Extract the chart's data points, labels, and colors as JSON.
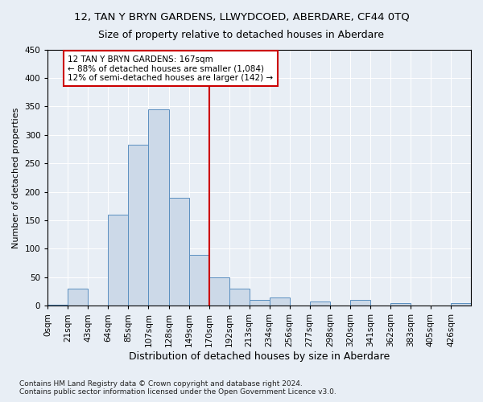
{
  "title": "12, TAN Y BRYN GARDENS, LLWYDCOED, ABERDARE, CF44 0TQ",
  "subtitle": "Size of property relative to detached houses in Aberdare",
  "xlabel": "Distribution of detached houses by size in Aberdare",
  "ylabel": "Number of detached properties",
  "footnote1": "Contains HM Land Registry data © Crown copyright and database right 2024.",
  "footnote2": "Contains public sector information licensed under the Open Government Licence v3.0.",
  "bin_labels": [
    "0sqm",
    "21sqm",
    "43sqm",
    "64sqm",
    "85sqm",
    "107sqm",
    "128sqm",
    "149sqm",
    "170sqm",
    "192sqm",
    "213sqm",
    "234sqm",
    "256sqm",
    "277sqm",
    "298sqm",
    "320sqm",
    "341sqm",
    "362sqm",
    "383sqm",
    "405sqm",
    "426sqm"
  ],
  "bar_heights": [
    2,
    30,
    0,
    160,
    283,
    345,
    190,
    90,
    50,
    30,
    10,
    15,
    0,
    8,
    0,
    10,
    0,
    5,
    0,
    0,
    5
  ],
  "bar_color": "#ccd9e8",
  "bar_edge_color": "#5a8fc0",
  "vline_x_index": 8,
  "vline_color": "#cc0000",
  "annotation_text": "12 TAN Y BRYN GARDENS: 167sqm\n← 88% of detached houses are smaller (1,084)\n12% of semi-detached houses are larger (142) →",
  "annotation_box_color": "#cc0000",
  "ylim": [
    0,
    450
  ],
  "yticks": [
    0,
    50,
    100,
    150,
    200,
    250,
    300,
    350,
    400,
    450
  ],
  "background_color": "#e8eef5",
  "plot_bg_color": "#e8eef5",
  "grid_color": "#ffffff",
  "title_fontsize": 9.5,
  "subtitle_fontsize": 9,
  "xlabel_fontsize": 9,
  "ylabel_fontsize": 8,
  "tick_fontsize": 7.5,
  "footnote_fontsize": 6.5
}
